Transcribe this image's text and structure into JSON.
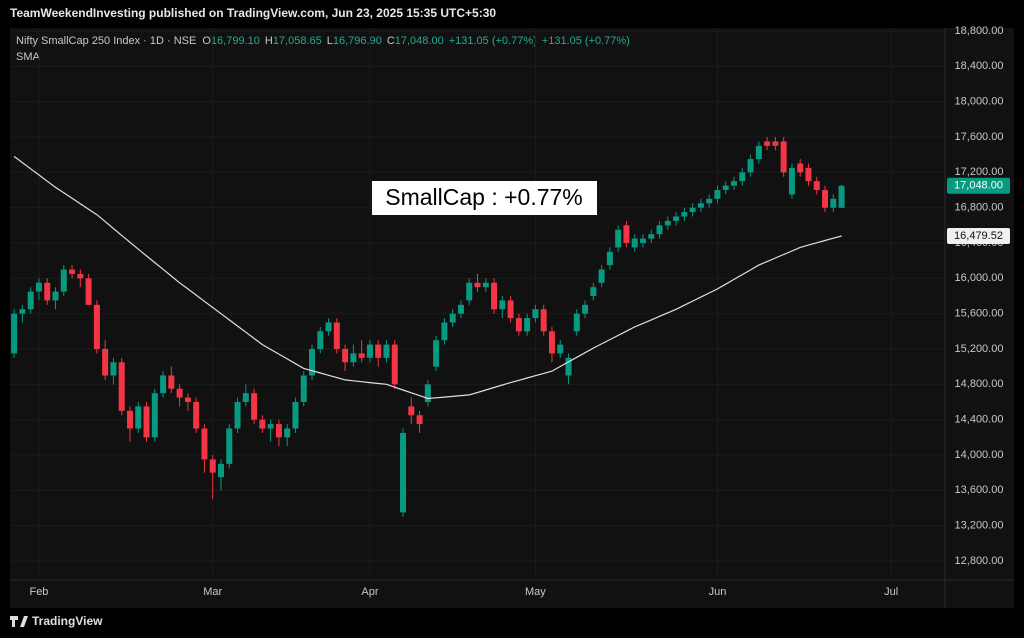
{
  "header": "TeamWeekendInvesting published on TradingView.com, Jun 23, 2025 15:35 UTC+5:30",
  "footer": "TradingView",
  "chart_data": {
    "type": "candlestick",
    "symbol": "Nifty SmallCap 250 Index · 1D · NSE",
    "ohlc_letters": [
      "O",
      "H",
      "L",
      "C"
    ],
    "ohlc_labels": [
      "16,799.10",
      "17,058.65",
      "16,796.90",
      "17,048.00"
    ],
    "change_labels": [
      "+131.05 (+0.77%)",
      "+131.05 (+0.77%)"
    ],
    "indicator": "SMA",
    "annotation": "SmallCap : +0.77%",
    "last_price_label": "17,048.00",
    "sma_last_label": "16,479.52",
    "up_color": "#089981",
    "down_color": "#f23645",
    "sma_color": "#e0e0e0",
    "grid": true,
    "xlim": [
      -0.5,
      112.5
    ],
    "xticks": [
      {
        "value": 3,
        "label": "Feb"
      },
      {
        "value": 24,
        "label": "Mar"
      },
      {
        "value": 43,
        "label": "Apr"
      },
      {
        "value": 63,
        "label": "May"
      },
      {
        "value": 85,
        "label": "Jun"
      },
      {
        "value": 106,
        "label": "Jul"
      }
    ],
    "ylim": [
      12585,
      18834
    ],
    "yticks": [
      {
        "value": 12800,
        "label": "12,800.00"
      },
      {
        "value": 13200,
        "label": "13,200.00"
      },
      {
        "value": 13600,
        "label": "13,600.00"
      },
      {
        "value": 14000,
        "label": "14,000.00"
      },
      {
        "value": 14400,
        "label": "14,400.00"
      },
      {
        "value": 14800,
        "label": "14,800.00"
      },
      {
        "value": 15200,
        "label": "15,200.00"
      },
      {
        "value": 15600,
        "label": "15,600.00"
      },
      {
        "value": 16000,
        "label": "16,000.00"
      },
      {
        "value": 16400,
        "label": "16,400.00"
      },
      {
        "value": 16800,
        "label": "16,800.00"
      },
      {
        "value": 17200,
        "label": "17,200.00"
      },
      {
        "value": 17600,
        "label": "17,600.00"
      },
      {
        "value": 18000,
        "label": "18,000.00"
      },
      {
        "value": 18400,
        "label": "18,400.00"
      },
      {
        "value": 18800,
        "label": "18,800.00"
      }
    ],
    "candles": [
      [
        15150,
        15650,
        15100,
        15600
      ],
      [
        15600,
        15700,
        15500,
        15650
      ],
      [
        15650,
        15900,
        15600,
        15850
      ],
      [
        15850,
        16000,
        15750,
        15950
      ],
      [
        15950,
        16000,
        15700,
        15750
      ],
      [
        15750,
        15900,
        15650,
        15850
      ],
      [
        15850,
        16150,
        15800,
        16100
      ],
      [
        16100,
        16150,
        16000,
        16050
      ],
      [
        16050,
        16100,
        15900,
        16000
      ],
      [
        16000,
        16050,
        15700,
        15700
      ],
      [
        15700,
        15750,
        15150,
        15200
      ],
      [
        15200,
        15300,
        14850,
        14900
      ],
      [
        14900,
        15100,
        14800,
        15050
      ],
      [
        15050,
        15100,
        14450,
        14500
      ],
      [
        14500,
        14550,
        14150,
        14300
      ],
      [
        14300,
        14600,
        14250,
        14550
      ],
      [
        14550,
        14600,
        14150,
        14200
      ],
      [
        14200,
        14750,
        14150,
        14700
      ],
      [
        14700,
        14950,
        14650,
        14900
      ],
      [
        14900,
        15000,
        14700,
        14750
      ],
      [
        14750,
        14800,
        14550,
        14650
      ],
      [
        14650,
        14700,
        14500,
        14600
      ],
      [
        14600,
        14650,
        14250,
        14300
      ],
      [
        14300,
        14350,
        13800,
        13950
      ],
      [
        13950,
        14000,
        13500,
        13800
      ],
      [
        13750,
        13950,
        13600,
        13900
      ],
      [
        13900,
        14350,
        13850,
        14300
      ],
      [
        14300,
        14650,
        14250,
        14600
      ],
      [
        14600,
        14800,
        14550,
        14700
      ],
      [
        14700,
        14750,
        14350,
        14400
      ],
      [
        14400,
        14450,
        14250,
        14300
      ],
      [
        14300,
        14400,
        14150,
        14350
      ],
      [
        14350,
        14400,
        14100,
        14200
      ],
      [
        14200,
        14350,
        14100,
        14300
      ],
      [
        14300,
        14650,
        14250,
        14600
      ],
      [
        14600,
        14950,
        14550,
        14900
      ],
      [
        14900,
        15250,
        14850,
        15200
      ],
      [
        15200,
        15450,
        15150,
        15400
      ],
      [
        15400,
        15550,
        15350,
        15500
      ],
      [
        15500,
        15550,
        15150,
        15200
      ],
      [
        15200,
        15250,
        14950,
        15050
      ],
      [
        15050,
        15250,
        15000,
        15150
      ],
      [
        15150,
        15300,
        15050,
        15100
      ],
      [
        15100,
        15300,
        15050,
        15250
      ],
      [
        15250,
        15300,
        15000,
        15100
      ],
      [
        15100,
        15300,
        15050,
        15250
      ],
      [
        15250,
        15300,
        14750,
        14800
      ],
      [
        13350,
        14300,
        13300,
        14250
      ],
      [
        14550,
        14650,
        14350,
        14450
      ],
      [
        14450,
        14500,
        14250,
        14350
      ],
      [
        14600,
        14850,
        14550,
        14800
      ],
      [
        15000,
        15350,
        14950,
        15300
      ],
      [
        15300,
        15550,
        15250,
        15500
      ],
      [
        15500,
        15650,
        15450,
        15600
      ],
      [
        15600,
        15750,
        15550,
        15700
      ],
      [
        15750,
        16000,
        15700,
        15950
      ],
      [
        15950,
        16050,
        15850,
        15900
      ],
      [
        15900,
        16000,
        15850,
        15950
      ],
      [
        15950,
        16000,
        15600,
        15650
      ],
      [
        15650,
        15800,
        15550,
        15750
      ],
      [
        15750,
        15800,
        15500,
        15550
      ],
      [
        15550,
        15600,
        15350,
        15400
      ],
      [
        15400,
        15600,
        15350,
        15550
      ],
      [
        15550,
        15700,
        15500,
        15650
      ],
      [
        15650,
        15700,
        15350,
        15400
      ],
      [
        15400,
        15450,
        15050,
        15150
      ],
      [
        15150,
        15300,
        15100,
        15250
      ],
      [
        14900,
        15150,
        14800,
        15100
      ],
      [
        15400,
        15650,
        15350,
        15600
      ],
      [
        15600,
        15750,
        15550,
        15700
      ],
      [
        15800,
        15950,
        15750,
        15900
      ],
      [
        15950,
        16150,
        15900,
        16100
      ],
      [
        16150,
        16350,
        16100,
        16300
      ],
      [
        16350,
        16600,
        16300,
        16550
      ],
      [
        16600,
        16650,
        16350,
        16400
      ],
      [
        16350,
        16500,
        16300,
        16450
      ],
      [
        16400,
        16500,
        16350,
        16450
      ],
      [
        16450,
        16550,
        16400,
        16500
      ],
      [
        16500,
        16650,
        16450,
        16600
      ],
      [
        16600,
        16700,
        16550,
        16650
      ],
      [
        16650,
        16750,
        16600,
        16700
      ],
      [
        16700,
        16800,
        16650,
        16750
      ],
      [
        16750,
        16850,
        16700,
        16800
      ],
      [
        16800,
        16900,
        16750,
        16850
      ],
      [
        16850,
        16950,
        16800,
        16900
      ],
      [
        16900,
        17050,
        16850,
        17000
      ],
      [
        17000,
        17100,
        16950,
        17050
      ],
      [
        17050,
        17150,
        17000,
        17100
      ],
      [
        17100,
        17250,
        17050,
        17200
      ],
      [
        17200,
        17400,
        17150,
        17350
      ],
      [
        17350,
        17550,
        17300,
        17500
      ],
      [
        17550,
        17600,
        17450,
        17500
      ],
      [
        17550,
        17600,
        17450,
        17500
      ],
      [
        17550,
        17600,
        17150,
        17200
      ],
      [
        16950,
        17300,
        16900,
        17250
      ],
      [
        17300,
        17350,
        17150,
        17200
      ],
      [
        17250,
        17300,
        17050,
        17100
      ],
      [
        17100,
        17150,
        16950,
        17000
      ],
      [
        17000,
        17050,
        16750,
        16800
      ],
      [
        16800,
        16950,
        16750,
        16900
      ],
      [
        16799.1,
        17058.65,
        16796.9,
        17048
      ]
    ],
    "sma": [
      17380,
      17310,
      17240,
      17170,
      17100,
      17030,
      16968,
      16906,
      16844,
      16782,
      16720,
      16642,
      16564,
      16486,
      16408,
      16330,
      16254,
      16178,
      16102,
      16026,
      15950,
      15880,
      15810,
      15740,
      15670,
      15600,
      15530,
      15460,
      15390,
      15320,
      15250,
      15196,
      15142,
      15088,
      15034,
      14980,
      14954,
      14928,
      14902,
      14876,
      14850,
      14840,
      14830,
      14820,
      14810,
      14800,
      14768,
      14736,
      14704,
      14672,
      14640,
      14648,
      14656,
      14664,
      14672,
      14680,
      14708,
      14736,
      14764,
      14792,
      14820,
      14846,
      14872,
      14898,
      14924,
      14950,
      15002,
      15054,
      15106,
      15158,
      15210,
      15258,
      15306,
      15354,
      15402,
      15450,
      15490,
      15530,
      15570,
      15610,
      15650,
      15696,
      15742,
      15788,
      15834,
      15880,
      15934,
      15988,
      16042,
      16096,
      16150,
      16190,
      16230,
      16270,
      16310,
      16350,
      16376,
      16402,
      16428,
      16454,
      16479.52
    ]
  }
}
